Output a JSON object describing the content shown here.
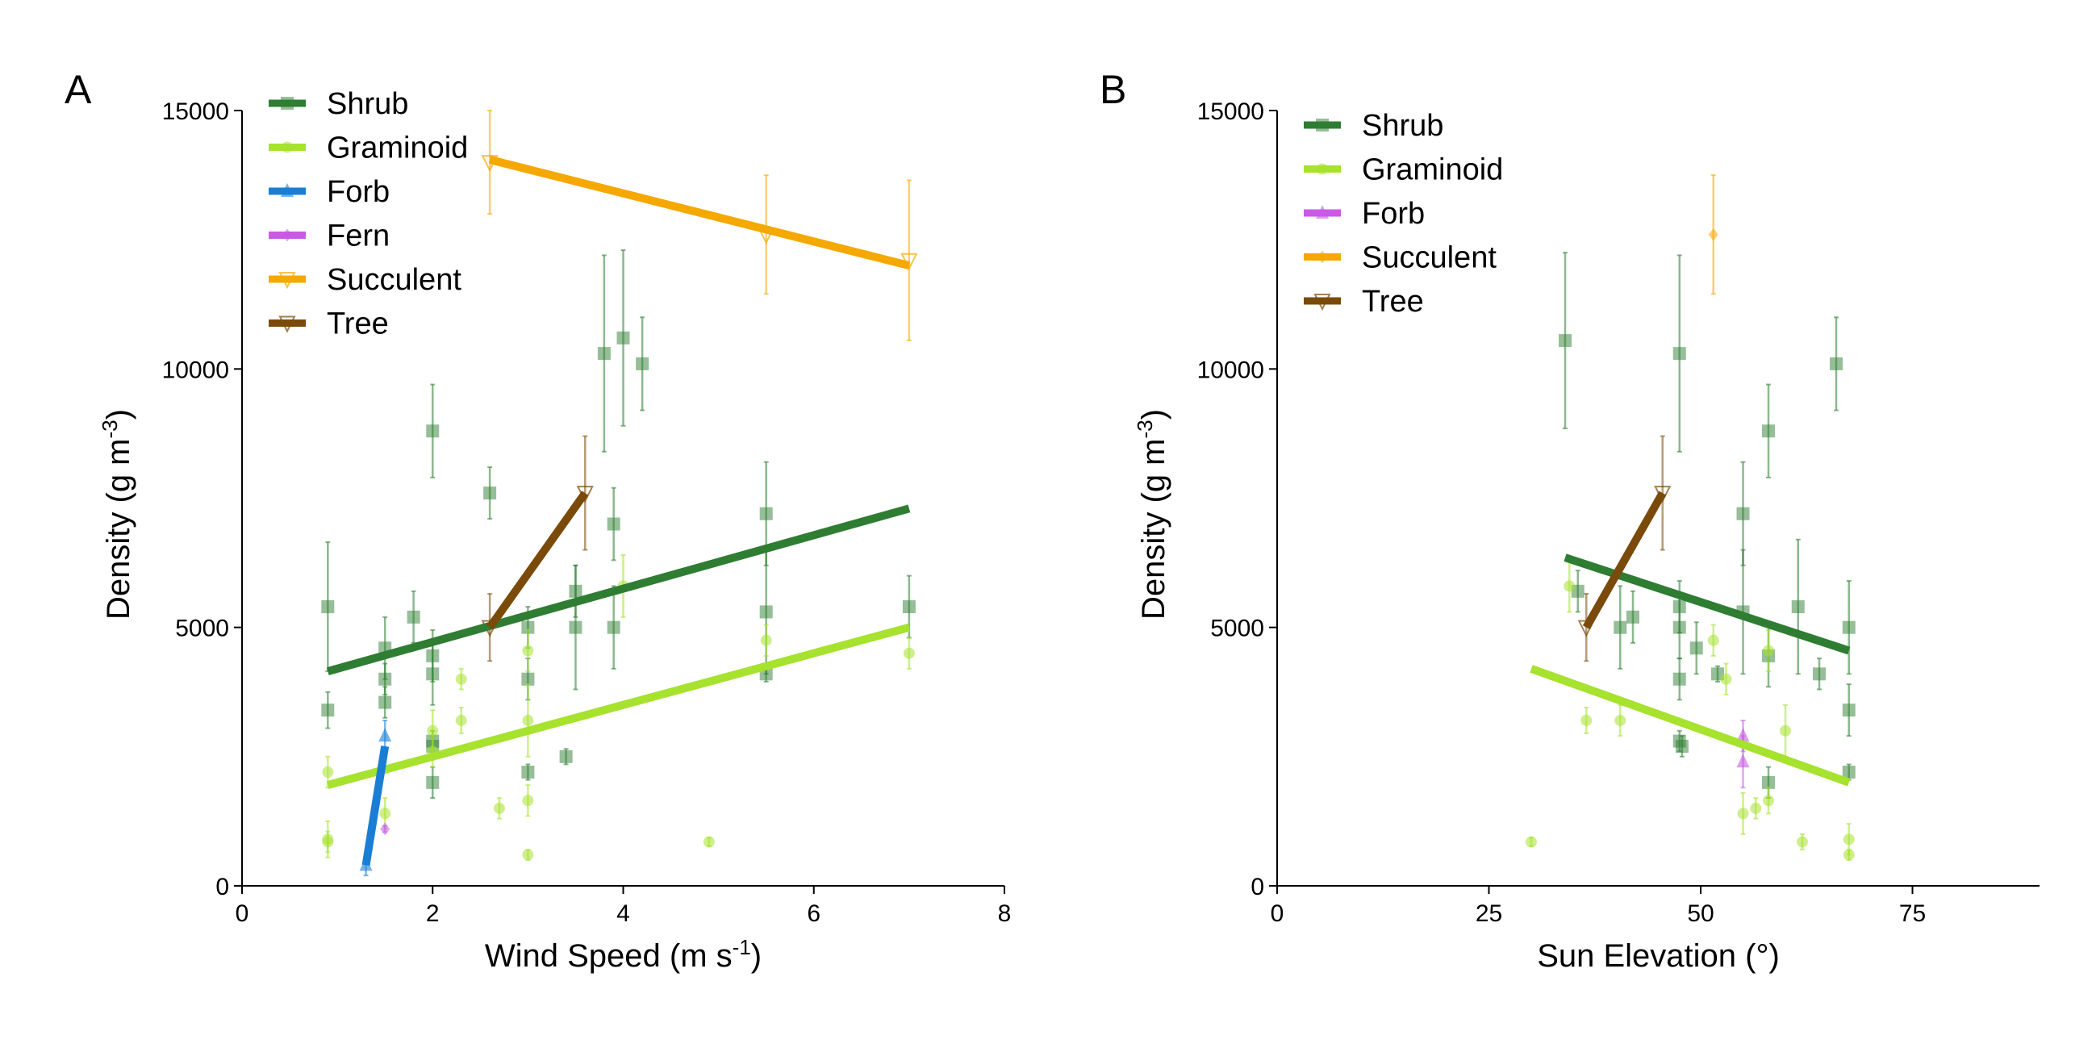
{
  "colors": {
    "Shrub": "#2e7d32",
    "Graminoid": "#a6e22e",
    "Forb_A": "#1a7fd4",
    "Forb_B": "#c85ae6",
    "Fern": "#c85ae6",
    "Succulent": "#f5a800",
    "Tree": "#7a4a0a",
    "axis": "#000000"
  },
  "chart_data": [
    {
      "panel": "A",
      "type": "scatter",
      "xlabel_main": "Wind Speed (m s",
      "xlabel_sup": "-1",
      "xlabel_tail": ")",
      "ylabel_main": "Density (g m",
      "ylabel_sup": "-3",
      "ylabel_tail": ")",
      "xlim": [
        0,
        8
      ],
      "ylim": [
        0,
        15000
      ],
      "xticks": [
        0,
        2,
        4,
        6,
        8
      ],
      "yticks": [
        0,
        5000,
        10000,
        15000
      ],
      "legend": [
        "Shrub",
        "Graminoid",
        "Forb",
        "Fern",
        "Succulent",
        "Tree"
      ],
      "legend_position": "top-left",
      "series": [
        {
          "name": "Shrub",
          "color_key": "Shrub",
          "marker": "square",
          "points": [
            {
              "x": 0.9,
              "y": 5400,
              "err": 1250
            },
            {
              "x": 0.9,
              "y": 3400,
              "err": 350
            },
            {
              "x": 1.5,
              "y": 4600,
              "err": 600
            },
            {
              "x": 1.5,
              "y": 4000,
              "err": 300
            },
            {
              "x": 1.5,
              "y": 3550,
              "err": 300
            },
            {
              "x": 1.8,
              "y": 5200,
              "err": 500
            },
            {
              "x": 2.0,
              "y": 8800,
              "err": 900
            },
            {
              "x": 2.0,
              "y": 4450,
              "err": 500
            },
            {
              "x": 2.0,
              "y": 4100,
              "err": 600
            },
            {
              "x": 2.0,
              "y": 2800,
              "err": 200
            },
            {
              "x": 2.0,
              "y": 2700,
              "err": 200
            },
            {
              "x": 2.0,
              "y": 2000,
              "err": 300
            },
            {
              "x": 2.6,
              "y": 7600,
              "err": 500
            },
            {
              "x": 3.0,
              "y": 5000,
              "err": 400
            },
            {
              "x": 3.0,
              "y": 4000,
              "err": 400
            },
            {
              "x": 3.0,
              "y": 2200,
              "err": 150
            },
            {
              "x": 3.4,
              "y": 2500,
              "err": 150
            },
            {
              "x": 3.5,
              "y": 5700,
              "err": 500
            },
            {
              "x": 3.5,
              "y": 5000,
              "err": 1200
            },
            {
              "x": 3.8,
              "y": 10300,
              "err": 1900
            },
            {
              "x": 3.9,
              "y": 7000,
              "err": 700
            },
            {
              "x": 3.9,
              "y": 5000,
              "err": 800
            },
            {
              "x": 4.0,
              "y": 10600,
              "err": 1700
            },
            {
              "x": 4.2,
              "y": 10100,
              "err": 900
            },
            {
              "x": 5.5,
              "y": 7200,
              "err": 1000
            },
            {
              "x": 5.5,
              "y": 5300,
              "err": 1200
            },
            {
              "x": 5.5,
              "y": 4100,
              "err": 150
            },
            {
              "x": 7.0,
              "y": 5400,
              "err": 600
            }
          ],
          "fit": {
            "x": [
              0.9,
              7.0
            ],
            "y": [
              4150,
              7300
            ]
          }
        },
        {
          "name": "Graminoid",
          "color_key": "Graminoid",
          "marker": "circle",
          "points": [
            {
              "x": 0.9,
              "y": 2200,
              "err": 300
            },
            {
              "x": 0.9,
              "y": 900,
              "err": 350
            },
            {
              "x": 0.9,
              "y": 850,
              "err": 200
            },
            {
              "x": 1.5,
              "y": 1400,
              "err": 300
            },
            {
              "x": 2.0,
              "y": 3000,
              "err": 400
            },
            {
              "x": 2.0,
              "y": 2600,
              "err": 300
            },
            {
              "x": 2.3,
              "y": 4000,
              "err": 200
            },
            {
              "x": 2.3,
              "y": 3200,
              "err": 250
            },
            {
              "x": 2.7,
              "y": 1500,
              "err": 200
            },
            {
              "x": 3.0,
              "y": 4550,
              "err": 400
            },
            {
              "x": 3.0,
              "y": 3200,
              "err": 700
            },
            {
              "x": 3.0,
              "y": 1650,
              "err": 300
            },
            {
              "x": 3.0,
              "y": 600,
              "err": 100
            },
            {
              "x": 4.0,
              "y": 5800,
              "err": 600
            },
            {
              "x": 4.9,
              "y": 850,
              "err": 80
            },
            {
              "x": 5.5,
              "y": 4750,
              "err": 300
            },
            {
              "x": 7.0,
              "y": 4500,
              "err": 300
            }
          ],
          "fit": {
            "x": [
              0.9,
              7.0
            ],
            "y": [
              1950,
              5000
            ]
          }
        },
        {
          "name": "Forb",
          "color_key": "Forb_A",
          "marker": "triangle",
          "points": [
            {
              "x": 1.3,
              "y": 400,
              "err": 200
            },
            {
              "x": 1.5,
              "y": 2900,
              "err": 300
            }
          ],
          "fit": {
            "x": [
              1.3,
              1.5
            ],
            "y": [
              400,
              2700
            ]
          }
        },
        {
          "name": "Fern",
          "color_key": "Fern",
          "marker": "diamond",
          "points": [
            {
              "x": 1.5,
              "y": 1100,
              "err": 60
            }
          ],
          "fit": null
        },
        {
          "name": "Succulent",
          "color_key": "Succulent",
          "marker": "triangle-down-open",
          "points": [
            {
              "x": 2.6,
              "y": 14000,
              "err": 1000
            },
            {
              "x": 5.5,
              "y": 12600,
              "err": 1150
            },
            {
              "x": 7.0,
              "y": 12100,
              "err": 1550
            }
          ],
          "fit": {
            "x": [
              2.6,
              7.0
            ],
            "y": [
              14050,
              12000
            ]
          }
        },
        {
          "name": "Tree",
          "color_key": "Tree",
          "marker": "triangle-down-open",
          "points": [
            {
              "x": 2.6,
              "y": 5000,
              "err": 650
            },
            {
              "x": 3.6,
              "y": 7600,
              "err": 1100
            }
          ],
          "fit": {
            "x": [
              2.6,
              3.6
            ],
            "y": [
              5000,
              7600
            ]
          }
        }
      ]
    },
    {
      "panel": "B",
      "type": "scatter",
      "xlabel_main": "Sun Elevation (°)",
      "xlabel_sup": "",
      "xlabel_tail": "",
      "ylabel_main": "Density (g m",
      "ylabel_sup": "-3",
      "ylabel_tail": ")",
      "xlim": [
        0,
        90
      ],
      "ylim": [
        0,
        15000
      ],
      "xticks": [
        0,
        25,
        50,
        75
      ],
      "yticks": [
        0,
        5000,
        10000,
        15000
      ],
      "legend": [
        "Shrub",
        "Graminoid",
        "Forb",
        "Succulent",
        "Tree"
      ],
      "legend_position": "top-left",
      "series": [
        {
          "name": "Shrub",
          "color_key": "Shrub",
          "marker": "square",
          "points": [
            {
              "x": 34.0,
              "y": 10550,
              "err": 1700
            },
            {
              "x": 35.5,
              "y": 5700,
              "err": 400
            },
            {
              "x": 40.5,
              "y": 5000,
              "err": 800
            },
            {
              "x": 42.0,
              "y": 5200,
              "err": 500
            },
            {
              "x": 47.5,
              "y": 10300,
              "err": 1900
            },
            {
              "x": 47.5,
              "y": 5400,
              "err": 500
            },
            {
              "x": 47.5,
              "y": 5000,
              "err": 600
            },
            {
              "x": 47.5,
              "y": 4000,
              "err": 400
            },
            {
              "x": 47.5,
              "y": 2800,
              "err": 200
            },
            {
              "x": 47.8,
              "y": 2700,
              "err": 200
            },
            {
              "x": 49.5,
              "y": 4600,
              "err": 500
            },
            {
              "x": 52.0,
              "y": 4100,
              "err": 150
            },
            {
              "x": 55.0,
              "y": 7200,
              "err": 1000
            },
            {
              "x": 55.0,
              "y": 5300,
              "err": 1200
            },
            {
              "x": 58.0,
              "y": 8800,
              "err": 900
            },
            {
              "x": 58.0,
              "y": 4450,
              "err": 600
            },
            {
              "x": 58.0,
              "y": 2000,
              "err": 300
            },
            {
              "x": 61.5,
              "y": 5400,
              "err": 1300
            },
            {
              "x": 64.0,
              "y": 4100,
              "err": 300
            },
            {
              "x": 66.0,
              "y": 10100,
              "err": 900
            },
            {
              "x": 67.5,
              "y": 5000,
              "err": 900
            },
            {
              "x": 67.5,
              "y": 3400,
              "err": 500
            },
            {
              "x": 67.5,
              "y": 2200,
              "err": 150
            }
          ],
          "fit": {
            "x": [
              34.0,
              67.5
            ],
            "y": [
              6350,
              4550
            ]
          }
        },
        {
          "name": "Graminoid",
          "color_key": "Graminoid",
          "marker": "circle",
          "points": [
            {
              "x": 30.0,
              "y": 850,
              "err": 80
            },
            {
              "x": 34.5,
              "y": 5800,
              "err": 500
            },
            {
              "x": 36.5,
              "y": 3200,
              "err": 250
            },
            {
              "x": 40.5,
              "y": 3200,
              "err": 300
            },
            {
              "x": 51.5,
              "y": 4750,
              "err": 300
            },
            {
              "x": 53.0,
              "y": 4000,
              "err": 300
            },
            {
              "x": 55.0,
              "y": 1400,
              "err": 400
            },
            {
              "x": 56.5,
              "y": 1500,
              "err": 200
            },
            {
              "x": 58.0,
              "y": 4550,
              "err": 400
            },
            {
              "x": 58.0,
              "y": 1650,
              "err": 250
            },
            {
              "x": 60.0,
              "y": 3000,
              "err": 500
            },
            {
              "x": 62.0,
              "y": 850,
              "err": 150
            },
            {
              "x": 67.5,
              "y": 900,
              "err": 300
            },
            {
              "x": 67.5,
              "y": 600,
              "err": 100
            }
          ],
          "fit": {
            "x": [
              30.0,
              67.5
            ],
            "y": [
              4200,
              2000
            ]
          }
        },
        {
          "name": "Forb",
          "color_key": "Forb_B",
          "marker": "triangle",
          "points": [
            {
              "x": 55.0,
              "y": 2900,
              "err": 300
            },
            {
              "x": 55.0,
              "y": 2400,
              "err": 500
            }
          ],
          "fit": null
        },
        {
          "name": "Succulent",
          "color_key": "Succulent",
          "marker": "diamond",
          "points": [
            {
              "x": 51.5,
              "y": 12600,
              "err": 1150
            }
          ],
          "fit": null
        },
        {
          "name": "Tree",
          "color_key": "Tree",
          "marker": "triangle-down-open",
          "points": [
            {
              "x": 36.5,
              "y": 5000,
              "err": 650
            },
            {
              "x": 45.5,
              "y": 7600,
              "err": 1100
            }
          ],
          "fit": {
            "x": [
              36.5,
              45.5
            ],
            "y": [
              5000,
              7600
            ]
          }
        }
      ]
    }
  ]
}
